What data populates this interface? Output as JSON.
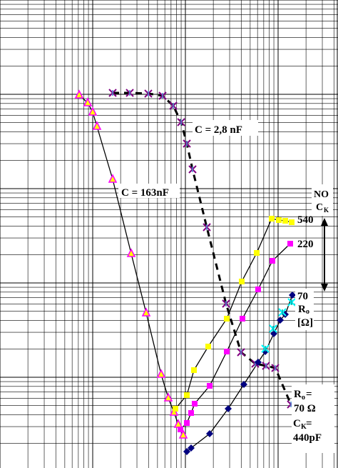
{
  "chart_data": {
    "type": "line",
    "xscale": "log",
    "yscale": "log",
    "grid": true,
    "annotations": {
      "c_curve_a": "C = 163nF",
      "c_curve_b": "C = 2,8 nF",
      "no_ck_1": "NO",
      "no_ck_2": "C",
      "no_ck_sub": "K",
      "r540": "540",
      "r220": "220",
      "r70": "70",
      "ro_label": "R",
      "ro_sub": "o",
      "ohm_unit": "[Ω]",
      "bottom_1": "R",
      "bottom_1_sub": "o",
      "bottom_1_eq": "=",
      "bottom_2": "70 Ω",
      "bottom_3": "C",
      "bottom_3_sub": "K",
      "bottom_3_eq": " =",
      "bottom_4": "440pF"
    },
    "series": [
      {
        "id": "c163",
        "marker": "triangle",
        "color": "#FFFF00",
        "points": [
          [
            111,
            133
          ],
          [
            123,
            144
          ],
          [
            130,
            157
          ],
          [
            136,
            177
          ],
          [
            158,
            251
          ],
          [
            184,
            355
          ],
          [
            205,
            438
          ],
          [
            226,
            524
          ],
          [
            236,
            557
          ],
          [
            244,
            577
          ],
          [
            250,
            594
          ],
          [
            257,
            609
          ]
        ]
      },
      {
        "id": "c28",
        "marker": "star",
        "color": "#800080",
        "points": [
          [
            158,
            130
          ],
          [
            182,
            130
          ],
          [
            208,
            131
          ],
          [
            228,
            134
          ],
          [
            243,
            148
          ],
          [
            254,
            171
          ],
          [
            262,
            201
          ],
          [
            270,
            237
          ],
          [
            290,
            318
          ],
          [
            317,
            425
          ],
          [
            338,
            493
          ],
          [
            358,
            509
          ],
          [
            373,
            512
          ],
          [
            386,
            515
          ],
          [
            408,
            566
          ]
        ]
      },
      {
        "id": "r540",
        "marker": "square",
        "color": "#FFFF00",
        "points": [
          [
            246,
            572
          ],
          [
            262,
            553
          ],
          [
            272,
            518
          ],
          [
            292,
            485
          ],
          [
            318,
            446
          ],
          [
            339,
            394
          ],
          [
            360,
            354
          ],
          [
            381,
            306
          ],
          [
            391,
            308
          ],
          [
            400,
            309
          ],
          [
            409,
            311
          ]
        ]
      },
      {
        "id": "r220",
        "marker": "square",
        "color": "#FF00FF",
        "points": [
          [
            253,
            601
          ],
          [
            262,
            592
          ],
          [
            268,
            578
          ],
          [
            273,
            565
          ],
          [
            294,
            540
          ],
          [
            318,
            492
          ],
          [
            340,
            446
          ],
          [
            362,
            405
          ],
          [
            382,
            365
          ],
          [
            407,
            341
          ]
        ]
      },
      {
        "id": "r70",
        "marker": "diamond",
        "color": "#000080",
        "points": [
          [
            262,
            632
          ],
          [
            268,
            627
          ],
          [
            294,
            607
          ],
          [
            320,
            572
          ],
          [
            342,
            538
          ],
          [
            362,
            507
          ],
          [
            372,
            492
          ],
          [
            384,
            467
          ],
          [
            393,
            448
          ],
          [
            400,
            440
          ],
          [
            410,
            413
          ]
        ]
      },
      {
        "id": "r70b",
        "marker": "star",
        "color": "#00FFFF",
        "points": [
          [
            372,
            488
          ],
          [
            383,
            460
          ],
          [
            396,
            437
          ],
          [
            409,
            423
          ]
        ]
      }
    ]
  }
}
